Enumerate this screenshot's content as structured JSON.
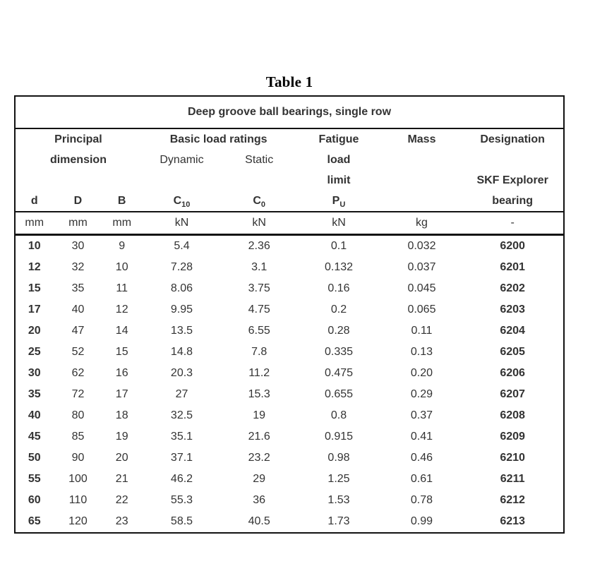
{
  "page": {
    "title": "Table 1"
  },
  "table": {
    "caption": "Deep groove ball bearings, single row",
    "header": {
      "principal_line1": "Principal",
      "principal_line2": "dimension",
      "basic_load_ratings": "Basic load ratings",
      "dynamic": "Dynamic",
      "static": "Static",
      "fatigue_line1": "Fatigue",
      "fatigue_line2": "load",
      "fatigue_line3": "limit",
      "mass": "Mass",
      "designation_line1": "Designation",
      "designation_line2": "SKF Explorer",
      "designation_line3": "bearing",
      "col_d": "d",
      "col_D": "D",
      "col_B": "B",
      "col_c10_base": "C",
      "col_c10_sub": "10",
      "col_c0_base": "C",
      "col_c0_sub": "0",
      "col_pu_base": "P",
      "col_pu_sub": "U"
    },
    "column_keys": [
      "d",
      "D",
      "B",
      "C10",
      "C0",
      "PU",
      "mass",
      "designation"
    ],
    "units": [
      "mm",
      "mm",
      "mm",
      "kN",
      "kN",
      "kN",
      "kg",
      "-"
    ],
    "rows": [
      [
        "10",
        "30",
        "9",
        "5.4",
        "2.36",
        "0.1",
        "0.032",
        "6200"
      ],
      [
        "12",
        "32",
        "10",
        "7.28",
        "3.1",
        "0.132",
        "0.037",
        "6201"
      ],
      [
        "15",
        "35",
        "11",
        "8.06",
        "3.75",
        "0.16",
        "0.045",
        "6202"
      ],
      [
        "17",
        "40",
        "12",
        "9.95",
        "4.75",
        "0.2",
        "0.065",
        "6203"
      ],
      [
        "20",
        "47",
        "14",
        "13.5",
        "6.55",
        "0.28",
        "0.11",
        "6204"
      ],
      [
        "25",
        "52",
        "15",
        "14.8",
        "7.8",
        "0.335",
        "0.13",
        "6205"
      ],
      [
        "30",
        "62",
        "16",
        "20.3",
        "11.2",
        "0.475",
        "0.20",
        "6206"
      ],
      [
        "35",
        "72",
        "17",
        "27",
        "15.3",
        "0.655",
        "0.29",
        "6207"
      ],
      [
        "40",
        "80",
        "18",
        "32.5",
        "19",
        "0.8",
        "0.37",
        "6208"
      ],
      [
        "45",
        "85",
        "19",
        "35.1",
        "21.6",
        "0.915",
        "0.41",
        "6209"
      ],
      [
        "50",
        "90",
        "20",
        "37.1",
        "23.2",
        "0.98",
        "0.46",
        "6210"
      ],
      [
        "55",
        "100",
        "21",
        "46.2",
        "29",
        "1.25",
        "0.61",
        "6211"
      ],
      [
        "60",
        "110",
        "22",
        "55.3",
        "36",
        "1.53",
        "0.78",
        "6212"
      ],
      [
        "65",
        "120",
        "23",
        "58.5",
        "40.5",
        "1.73",
        "0.99",
        "6213"
      ]
    ]
  }
}
